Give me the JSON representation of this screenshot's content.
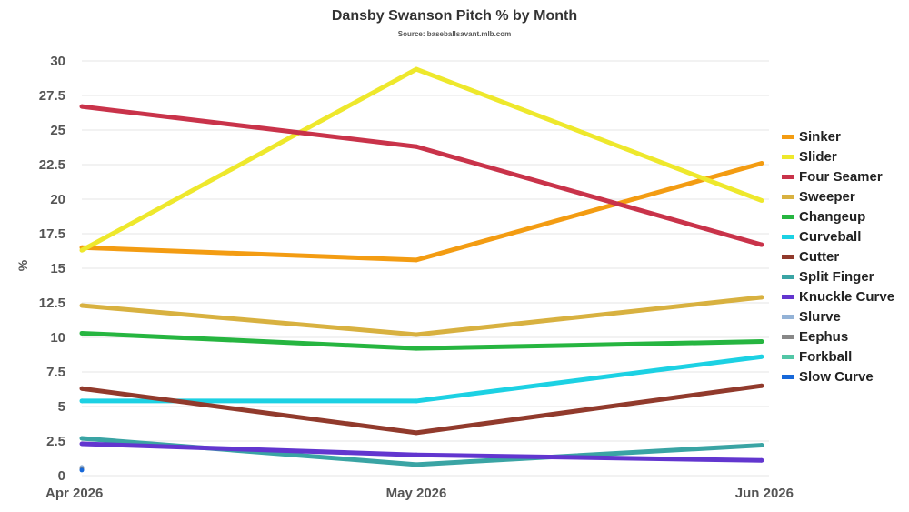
{
  "chart_data": {
    "type": "line",
    "title": "Dansby Swanson Pitch % by Month",
    "subtitle": "Source: baseballsavant.mlb.com",
    "ylabel": "%",
    "xlabel": "",
    "categories": [
      "Apr 2026",
      "May 2026",
      "Jun 2026"
    ],
    "ylim": [
      0,
      30
    ],
    "yticks": [
      "0",
      "2.5",
      "5",
      "7.5",
      "10",
      "12.5",
      "15",
      "17.5",
      "20",
      "22.5",
      "25",
      "27.5",
      "30"
    ],
    "grid": true,
    "legend_position": "right",
    "series": [
      {
        "name": "Sinker",
        "color": "#f39c12",
        "values": [
          16.5,
          15.6,
          22.6
        ]
      },
      {
        "name": "Slider",
        "color": "#eee82c",
        "values": [
          16.3,
          29.4,
          19.9
        ]
      },
      {
        "name": "Four Seamer",
        "color": "#c9334a",
        "values": [
          26.7,
          23.8,
          16.7
        ]
      },
      {
        "name": "Sweeper",
        "color": "#d8b140",
        "values": [
          12.3,
          10.2,
          12.9
        ]
      },
      {
        "name": "Changeup",
        "color": "#26b540",
        "values": [
          10.3,
          9.2,
          9.7
        ]
      },
      {
        "name": "Curveball",
        "color": "#1cd1e3",
        "values": [
          5.4,
          5.4,
          8.6
        ]
      },
      {
        "name": "Cutter",
        "color": "#913a2c",
        "values": [
          6.3,
          3.1,
          6.5
        ]
      },
      {
        "name": "Split Finger",
        "color": "#3aa4a4",
        "values": [
          2.7,
          0.8,
          2.2
        ]
      },
      {
        "name": "Knuckle Curve",
        "color": "#6236cf",
        "values": [
          2.3,
          1.5,
          1.1
        ]
      },
      {
        "name": "Slurve",
        "color": "#93b2d6",
        "values": [
          0.6,
          null,
          null
        ]
      },
      {
        "name": "Eephus",
        "color": "#888888",
        "values": [
          0.5,
          null,
          null
        ]
      },
      {
        "name": "Forkball",
        "color": "#52c6a6",
        "values": [
          null,
          null,
          null
        ]
      },
      {
        "name": "Slow Curve",
        "color": "#1768d9",
        "values": [
          0.4,
          null,
          null
        ]
      }
    ]
  }
}
